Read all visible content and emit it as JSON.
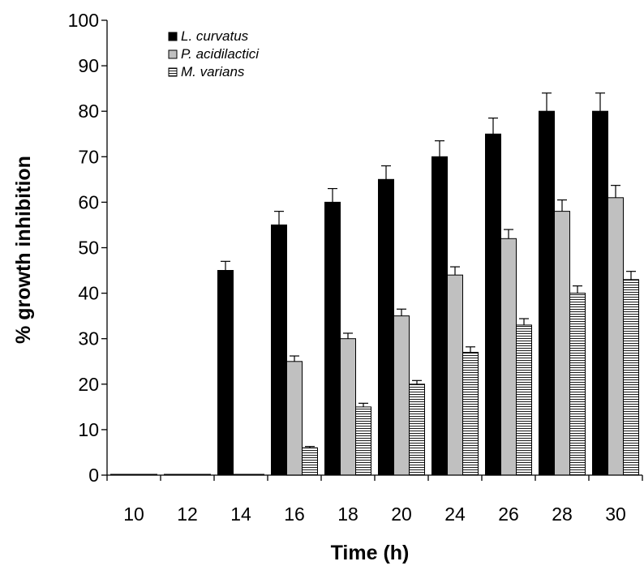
{
  "chart_data": {
    "type": "bar",
    "title": "",
    "xlabel": "Time (h)",
    "ylabel": "% growth inhibition",
    "categories": [
      "10",
      "12",
      "14",
      "16",
      "18",
      "20",
      "24",
      "26",
      "28",
      "30"
    ],
    "ylim": [
      0,
      100
    ],
    "yticks": [
      "0",
      "10",
      "20",
      "30",
      "40",
      "50",
      "60",
      "70",
      "80",
      "90",
      "100"
    ],
    "grid": false,
    "legend_position": "top-left",
    "series": [
      {
        "name": "L. curvatus",
        "color": "#000000",
        "fill": "solid",
        "values": [
          0,
          0,
          45,
          55,
          60,
          65,
          70,
          75,
          80,
          80
        ],
        "errors": [
          0,
          0,
          2,
          3,
          3,
          3,
          3.5,
          3.5,
          4,
          4
        ]
      },
      {
        "name": "P. acidilactici",
        "color": "#c0c0c0",
        "fill": "solid",
        "values": [
          0,
          0,
          0,
          25,
          30,
          35,
          44,
          52,
          58,
          61
        ],
        "errors": [
          0,
          0,
          0,
          1.2,
          1.2,
          1.5,
          1.8,
          2,
          2.5,
          2.7
        ]
      },
      {
        "name": "M. varians",
        "color": "#ffffff",
        "fill": "horizontal-hatch",
        "values": [
          0,
          0,
          0,
          6,
          15,
          20,
          27,
          33,
          40,
          43
        ],
        "errors": [
          0,
          0,
          0,
          0.3,
          0.8,
          0.8,
          1.2,
          1.4,
          1.6,
          1.8
        ]
      }
    ]
  }
}
